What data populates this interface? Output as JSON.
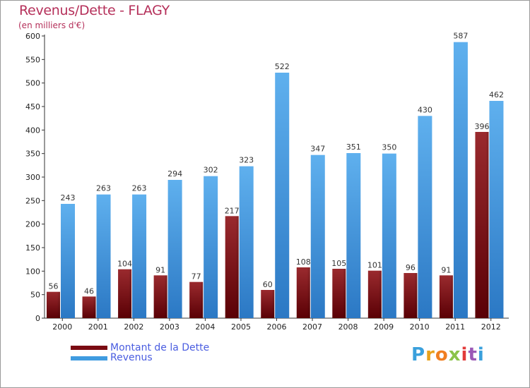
{
  "title": "Revenus/Dette - FLAGY",
  "subtitle": "(en milliers d'€)",
  "brand": {
    "text": "Proxiti",
    "letter_colors": [
      "#3aa0dc",
      "#e8a21c",
      "#f07f20",
      "#8bc34a",
      "#e23b3b",
      "#9b59b6",
      "#3aa0dc"
    ]
  },
  "legend": {
    "debt_label": "Montant de la Dette",
    "revenue_label": "Revenus",
    "debt_color": "#7a0b12",
    "revenue_color": "#3f9be0"
  },
  "chart_data": {
    "type": "bar",
    "title": "Revenus/Dette - FLAGY",
    "ylabel": "(en milliers d'€)",
    "xlabel": "",
    "ylim": [
      0,
      600
    ],
    "yticks": [
      0,
      50,
      100,
      150,
      200,
      250,
      300,
      350,
      400,
      450,
      500,
      550,
      600
    ],
    "grid": false,
    "legend_position": "bottom-left",
    "categories": [
      "2000",
      "2001",
      "2002",
      "2003",
      "2004",
      "2005",
      "2006",
      "2007",
      "2008",
      "2009",
      "2010",
      "2011",
      "2012"
    ],
    "series": [
      {
        "name": "Montant de la Dette",
        "color": "#7a0b12",
        "values": [
          56,
          46,
          104,
          91,
          77,
          217,
          60,
          108,
          105,
          101,
          96,
          91,
          396
        ]
      },
      {
        "name": "Revenus",
        "color": "#3f9be0",
        "values": [
          243,
          263,
          263,
          294,
          302,
          323,
          522,
          347,
          351,
          350,
          430,
          587,
          462
        ]
      }
    ]
  }
}
